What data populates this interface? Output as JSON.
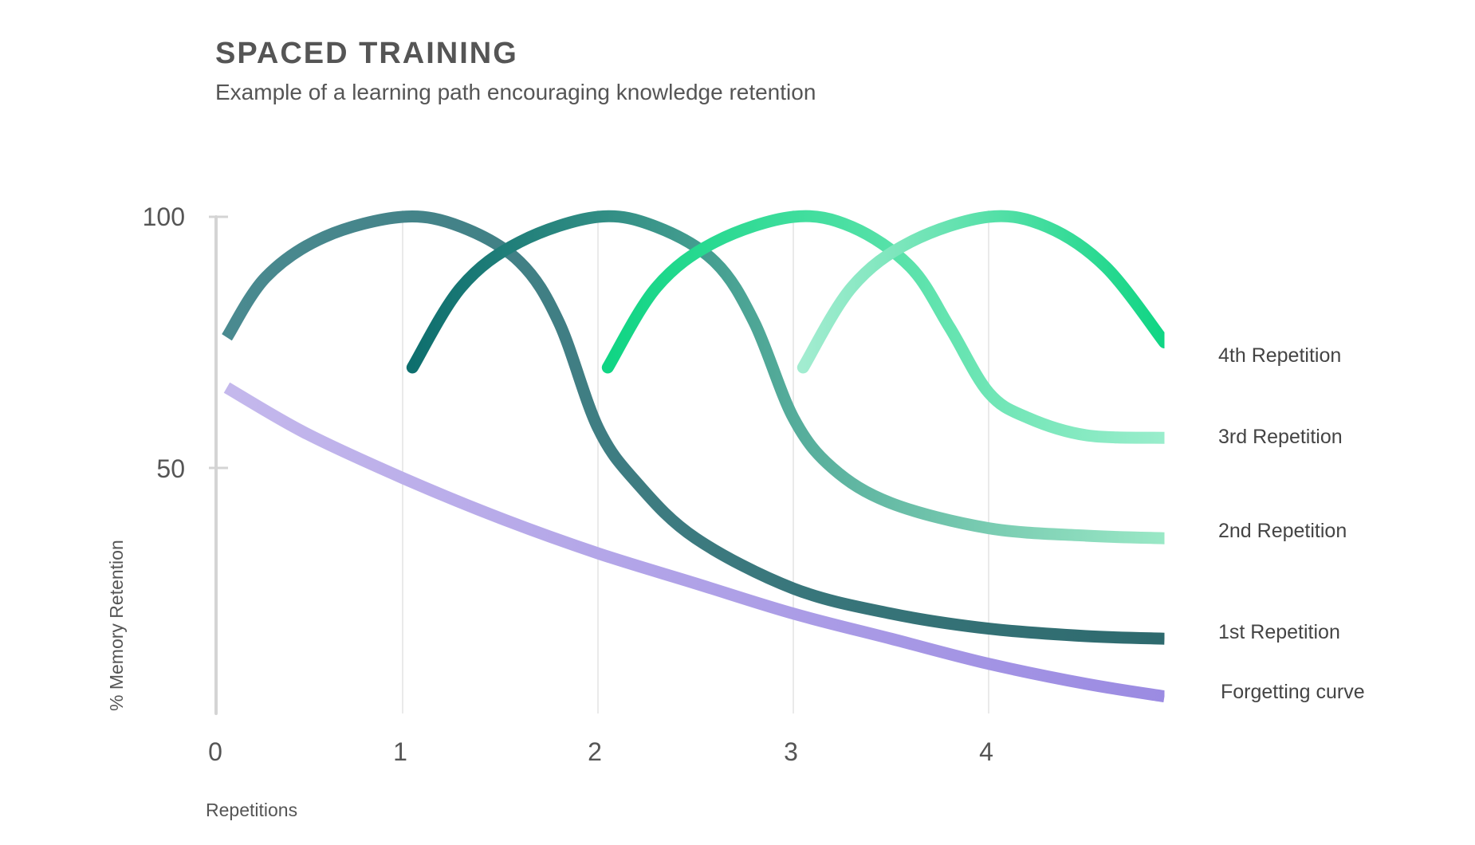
{
  "title": "SPACED TRAINING",
  "subtitle": "Example of a learning path encouraging knowledge retention",
  "chart_data": {
    "type": "line",
    "title": "SPACED TRAINING",
    "subtitle": "Example of a learning path encouraging knowledge retention",
    "xlabel": "Repetitions",
    "ylabel": "% Memory Retention",
    "xlim": [
      0,
      4.9
    ],
    "ylim": [
      0,
      100
    ],
    "x_ticks": [
      "0",
      "1",
      "2",
      "3",
      "4"
    ],
    "y_ticks": [
      "50",
      "100"
    ],
    "grid": "vertical gridlines at x = 1, 2, 3, 4",
    "legend": "labels at right end of each line",
    "series": [
      {
        "name": "Forgetting curve",
        "color_start": "#c4b8ec",
        "color_end": "#9b8be2",
        "x": [
          0.1,
          0.5,
          1,
          1.5,
          2,
          2.5,
          3,
          3.5,
          4,
          4.5,
          4.9
        ],
        "y": [
          66,
          57,
          48,
          40,
          33,
          27,
          21,
          16,
          11,
          7,
          4.5
        ]
      },
      {
        "name": "1st Repetition",
        "color_start": "#4a8a90",
        "color_end": "#2e6a6e",
        "x": [
          0.1,
          0.3,
          0.6,
          1,
          1.3,
          1.6,
          1.8,
          2,
          2.2,
          2.5,
          3,
          3.5,
          4,
          4.5,
          4.9
        ],
        "y": [
          76,
          88,
          96,
          100,
          98,
          91,
          79,
          58,
          47,
          36,
          26,
          21,
          18,
          16.5,
          16
        ]
      },
      {
        "name": "2nd Repetition",
        "color_start": "#0e6f6e",
        "color_end": "#9ae8c6",
        "x": [
          1.05,
          1.3,
          1.6,
          2,
          2.3,
          2.6,
          2.8,
          3,
          3.2,
          3.5,
          4,
          4.5,
          4.9
        ],
        "y": [
          70,
          86,
          95,
          100,
          98,
          91,
          79,
          60,
          50,
          43,
          38,
          36.5,
          36
        ]
      },
      {
        "name": "3rd Repetition",
        "color_start": "#10d584",
        "color_end": "#9aedcc",
        "x": [
          2.05,
          2.3,
          2.6,
          3,
          3.3,
          3.6,
          3.8,
          4,
          4.2,
          4.5,
          4.9
        ],
        "y": [
          70,
          86,
          95,
          100,
          98,
          90,
          78,
          65,
          60,
          56.5,
          56
        ]
      },
      {
        "name": "4th Repetition",
        "color_start": "#a2ecd0",
        "color_end": "#10d584",
        "x": [
          3.05,
          3.3,
          3.6,
          4,
          4.3,
          4.6,
          4.9
        ],
        "y": [
          70,
          86,
          95,
          100,
          98,
          90,
          75
        ]
      }
    ]
  }
}
